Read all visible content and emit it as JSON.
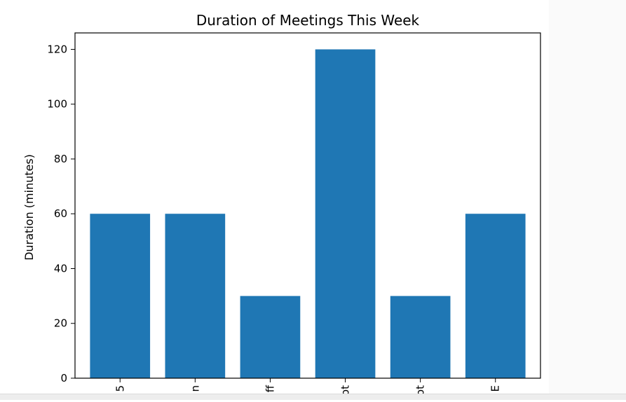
{
  "chart_data": {
    "type": "bar",
    "title": "Duration of Meetings This Week",
    "xlabel": "",
    "ylabel": "Duration (minutes)",
    "categories": [
      "5",
      "n",
      "ff",
      "ot",
      "ot",
      "E"
    ],
    "values": [
      60,
      60,
      30,
      120,
      30,
      60
    ],
    "ylim": [
      0,
      126
    ],
    "yticks": [
      0,
      20,
      40,
      60,
      80,
      100,
      120
    ],
    "grid": false,
    "legend": "none",
    "bar_color": "#1f77b4"
  }
}
